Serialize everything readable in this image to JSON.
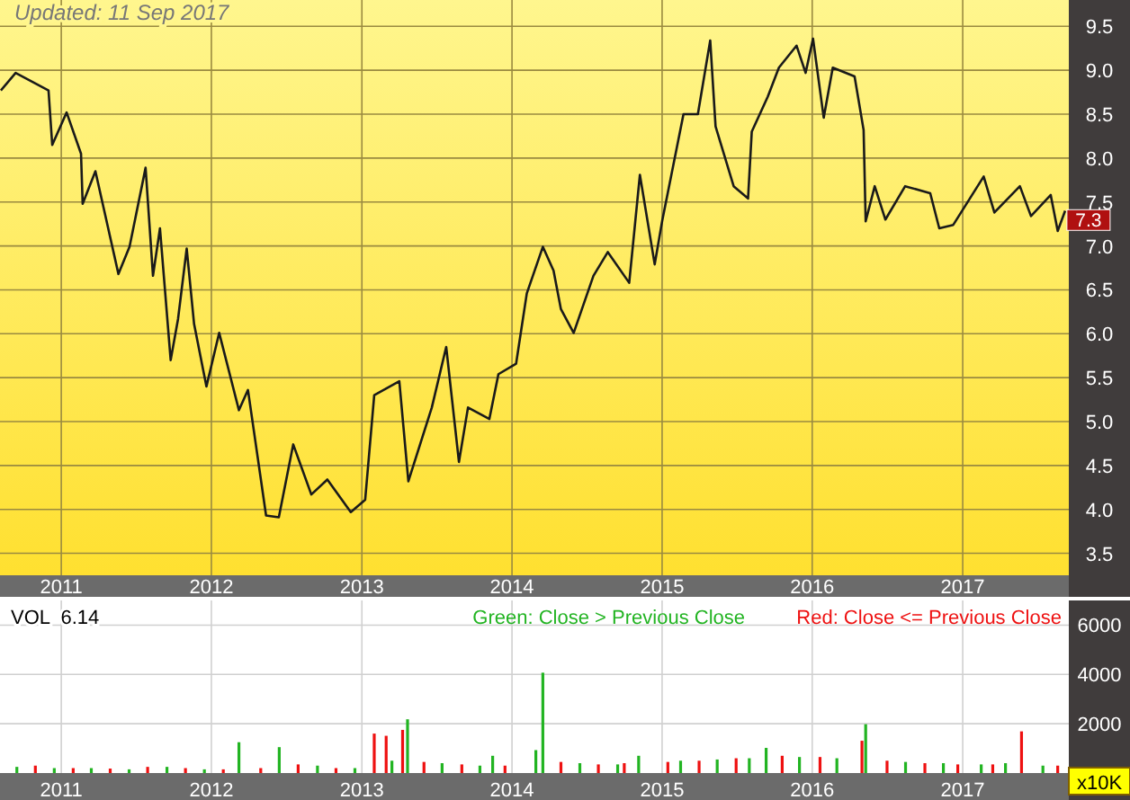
{
  "chart_data": [
    {
      "type": "line",
      "title": null,
      "annotations": [
        "Updated: 11 Sep 2017",
        {
          "text": "7.3",
          "x": "2017-09-07",
          "y": 7.3
        }
      ],
      "grid": true,
      "legend": false,
      "xlim": [
        "2010-08-05",
        "2017-09-16"
      ],
      "xticks": [
        {
          "value": "2011-01-01",
          "label": "2011"
        },
        {
          "value": "2012-01-01",
          "label": "2012"
        },
        {
          "value": "2013-01-01",
          "label": "2013"
        },
        {
          "value": "2014-01-01",
          "label": "2014"
        },
        {
          "value": "2015-01-01",
          "label": "2015"
        },
        {
          "value": "2016-01-01",
          "label": "2016"
        },
        {
          "value": "2017-01-01",
          "label": "2017"
        }
      ],
      "ylim": [
        3.25,
        9.8
      ],
      "yticks": [
        3.5,
        {
          "value": 4,
          "label": "4.0"
        },
        4.5,
        {
          "value": 5,
          "label": "5.0"
        },
        5.5,
        {
          "value": 6,
          "label": "6.0"
        },
        6.5,
        {
          "value": 7,
          "label": "7.0"
        },
        7.5,
        {
          "value": 8,
          "label": "8.0"
        },
        8.5,
        {
          "value": 9,
          "label": "9.0"
        },
        9.5
      ],
      "x": [
        "2010-08-07",
        "2010-09-12",
        "2010-12-01",
        "2010-12-10",
        "2011-01-14",
        "2011-02-18",
        "2011-02-22",
        "2011-03-25",
        "2011-05-20",
        "2011-06-16",
        "2011-07-25",
        "2011-08-12",
        "2011-08-29",
        "2011-09-24",
        "2011-10-12",
        "2011-11-02",
        "2011-11-20",
        "2011-12-20",
        "2012-01-20",
        "2012-03-08",
        "2012-03-30",
        "2012-05-13",
        "2012-06-13",
        "2012-07-18",
        "2012-08-31",
        "2012-10-09",
        "2012-12-05",
        "2013-01-09",
        "2013-01-31",
        "2013-04-02",
        "2013-04-24",
        "2013-06-20",
        "2013-07-25",
        "2013-08-25",
        "2013-09-16",
        "2013-11-07",
        "2013-11-29",
        "2014-01-11",
        "2014-02-06",
        "2014-03-17",
        "2014-04-12",
        "2014-04-30",
        "2014-05-31",
        "2014-07-18",
        "2014-08-22",
        "2014-10-13",
        "2014-11-08",
        "2014-12-14",
        "2015-01-01",
        "2015-02-22",
        "2015-03-29",
        "2015-04-28",
        "2015-05-11",
        "2015-06-24",
        "2015-07-29",
        "2015-08-07",
        "2015-09-15",
        "2015-10-12",
        "2015-11-24",
        "2015-12-16",
        "2016-01-03",
        "2016-01-29",
        "2016-02-20",
        "2016-04-13",
        "2016-05-05",
        "2016-05-10",
        "2016-06-01",
        "2016-06-27",
        "2016-08-14",
        "2016-10-14",
        "2016-11-05",
        "2016-12-09",
        "2017-02-21",
        "2017-03-19",
        "2017-05-20",
        "2017-06-16",
        "2017-08-03",
        "2017-08-20",
        "2017-09-07"
      ],
      "series": [
        {
          "color": "#1a1a1a",
          "values": [
            8.77,
            8.97,
            8.77,
            8.15,
            8.52,
            8.05,
            7.48,
            7.85,
            6.68,
            6.99,
            7.89,
            6.66,
            7.2,
            5.7,
            6.17,
            6.97,
            6.11,
            5.4,
            6.01,
            5.13,
            5.36,
            3.93,
            3.91,
            4.74,
            4.17,
            4.34,
            3.97,
            4.11,
            5.3,
            5.46,
            4.32,
            5.16,
            5.85,
            4.54,
            5.16,
            5.03,
            5.54,
            5.66,
            6.46,
            6.99,
            6.72,
            6.28,
            6.01,
            6.66,
            6.93,
            6.58,
            7.81,
            6.79,
            7.28,
            8.5,
            8.5,
            9.34,
            8.36,
            7.68,
            7.54,
            8.3,
            8.7,
            9.03,
            9.28,
            8.97,
            9.36,
            8.46,
            9.03,
            8.93,
            8.32,
            7.28,
            7.68,
            7.3,
            7.68,
            7.6,
            7.2,
            7.24,
            7.79,
            7.38,
            7.68,
            7.34,
            7.58,
            7.17,
            7.4
          ]
        }
      ]
    },
    {
      "type": "bar",
      "annotations": [
        "VOL  6.14"
      ],
      "grid": true,
      "legend": "top right",
      "ylabel": "x10K",
      "xlim": [
        "2010-08-05",
        "2017-09-16"
      ],
      "xticks": [
        {
          "value": "2011-01-01",
          "label": "2011"
        },
        {
          "value": "2012-01-01",
          "label": "2012"
        },
        {
          "value": "2013-01-01",
          "label": "2013"
        },
        {
          "value": "2014-01-01",
          "label": "2014"
        },
        {
          "value": "2015-01-01",
          "label": "2015"
        },
        {
          "value": "2016-01-01",
          "label": "2016"
        },
        {
          "value": "2017-01-01",
          "label": "2017"
        }
      ],
      "ylim": [
        0,
        7000
      ],
      "yticks": [
        2000,
        4000,
        6000
      ],
      "series": [
        {
          "name": "Green: Close > Previous Close",
          "color": "#22b422",
          "x": [
            "2010-09-15",
            "2010-12-15",
            "2011-03-15",
            "2011-06-15",
            "2011-09-15",
            "2011-12-15",
            "2012-03-08",
            "2012-06-14",
            "2012-09-15",
            "2012-12-15",
            "2013-03-15",
            "2013-04-22",
            "2013-07-15",
            "2013-10-15",
            "2013-11-15",
            "2014-02-28",
            "2014-03-17",
            "2014-06-15",
            "2014-09-15",
            "2014-11-05",
            "2015-02-15",
            "2015-05-15",
            "2015-08-01",
            "2015-09-11",
            "2015-12-01",
            "2016-03-01",
            "2016-05-10",
            "2016-08-15",
            "2016-11-15",
            "2017-02-15",
            "2017-04-15",
            "2017-07-15"
          ],
          "values": [
            250,
            200,
            200,
            150,
            250,
            150,
            1250,
            1050,
            300,
            200,
            500,
            2180,
            400,
            300,
            700,
            930,
            4070,
            400,
            350,
            700,
            500,
            550,
            600,
            1020,
            650,
            600,
            1980,
            450,
            400,
            350,
            400,
            300
          ]
        },
        {
          "name": "Red: Close <= Previous Close",
          "color": "#ee1111",
          "x": [
            "2010-10-30",
            "2011-01-30",
            "2011-04-30",
            "2011-07-30",
            "2011-10-30",
            "2012-01-30",
            "2012-04-30",
            "2012-07-30",
            "2012-10-30",
            "2013-01-31",
            "2013-03-01",
            "2013-04-10",
            "2013-06-01",
            "2013-09-01",
            "2013-12-15",
            "2014-04-30",
            "2014-07-30",
            "2014-10-01",
            "2015-01-15",
            "2015-04-01",
            "2015-06-30",
            "2015-10-20",
            "2016-01-20",
            "2016-05-01",
            "2016-07-01",
            "2016-10-01",
            "2016-12-20",
            "2017-03-15",
            "2017-05-24",
            "2017-08-20"
          ],
          "values": [
            300,
            200,
            180,
            250,
            200,
            150,
            200,
            350,
            200,
            1600,
            1510,
            1750,
            450,
            350,
            300,
            450,
            350,
            400,
            450,
            500,
            600,
            700,
            650,
            1310,
            500,
            400,
            350,
            350,
            1690,
            300
          ]
        }
      ]
    }
  ]
}
